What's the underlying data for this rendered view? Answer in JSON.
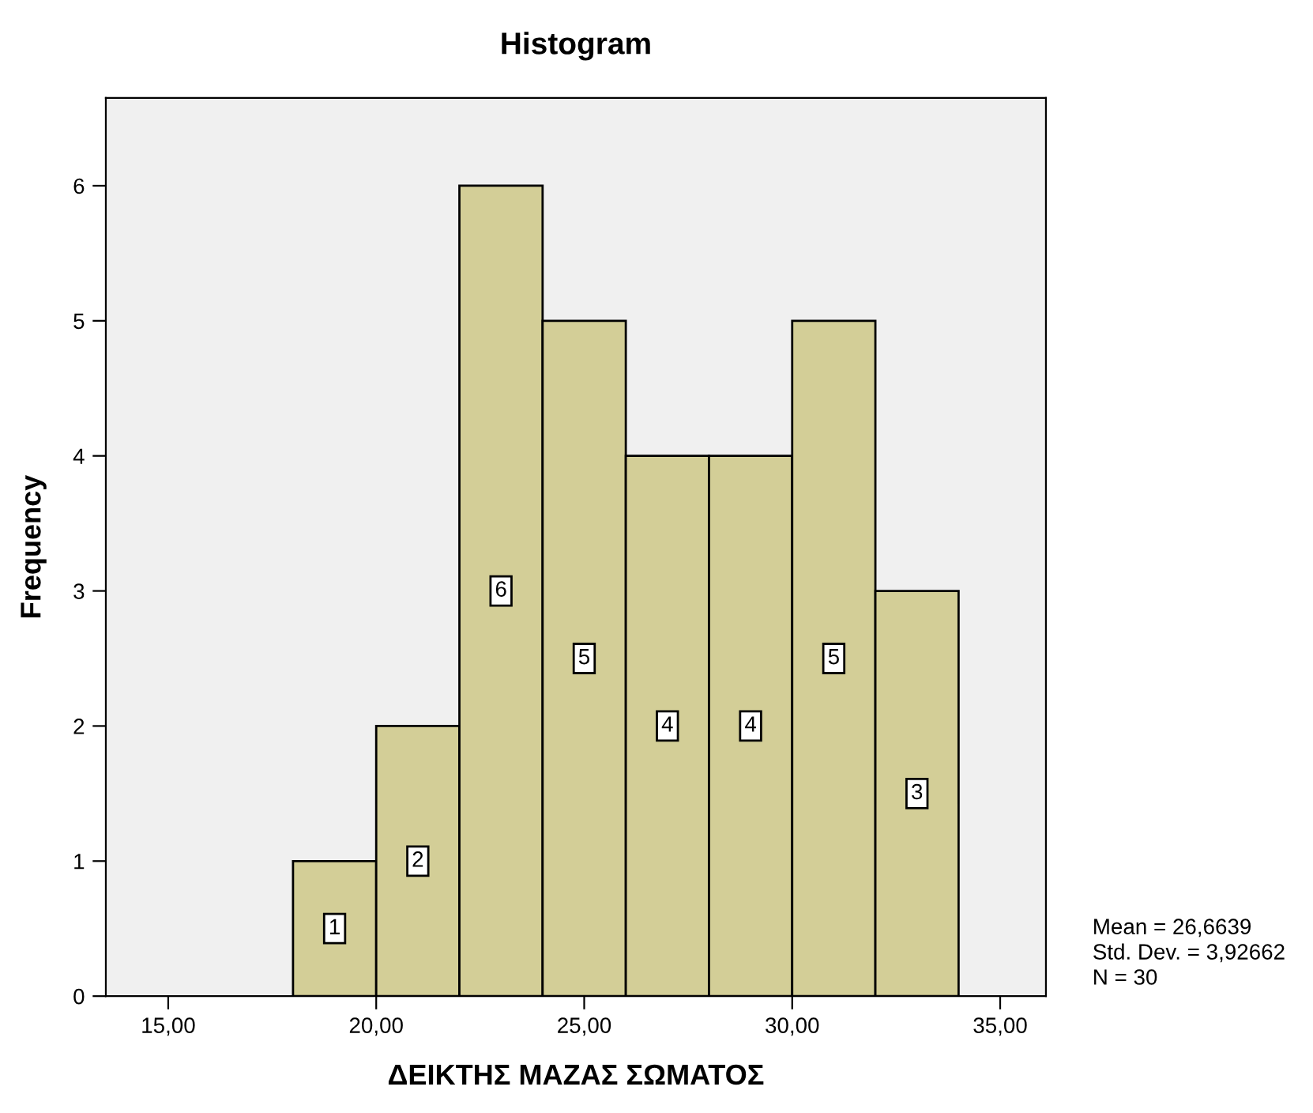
{
  "chart_data": {
    "type": "histogram",
    "title": "Histogram",
    "xlabel": "ΔΕΙΚΤΗΣ ΜΑΖΑΣ ΣΩΜΑΤΟΣ",
    "ylabel": "Frequency",
    "bins": [
      18,
      20,
      22,
      24,
      26,
      28,
      30,
      32,
      34
    ],
    "values": [
      1,
      2,
      6,
      5,
      4,
      4,
      5,
      3
    ],
    "color": "#d3ce97",
    "data_labels": true,
    "xlim": [
      13.5,
      36.1
    ],
    "ylim": [
      0,
      6.65
    ],
    "xticks": [
      {
        "value": 15,
        "label": "15,00"
      },
      {
        "value": 20,
        "label": "20,00"
      },
      {
        "value": 25,
        "label": "25,00"
      },
      {
        "value": 30,
        "label": "30,00"
      },
      {
        "value": 35,
        "label": "35,00"
      }
    ],
    "yticks": [
      0,
      1,
      2,
      3,
      4,
      5,
      6
    ],
    "grid": false,
    "legend": false,
    "annotations": [
      "Mean = 26,6639\nStd. Dev. = 3,92662\nN = 30"
    ]
  }
}
